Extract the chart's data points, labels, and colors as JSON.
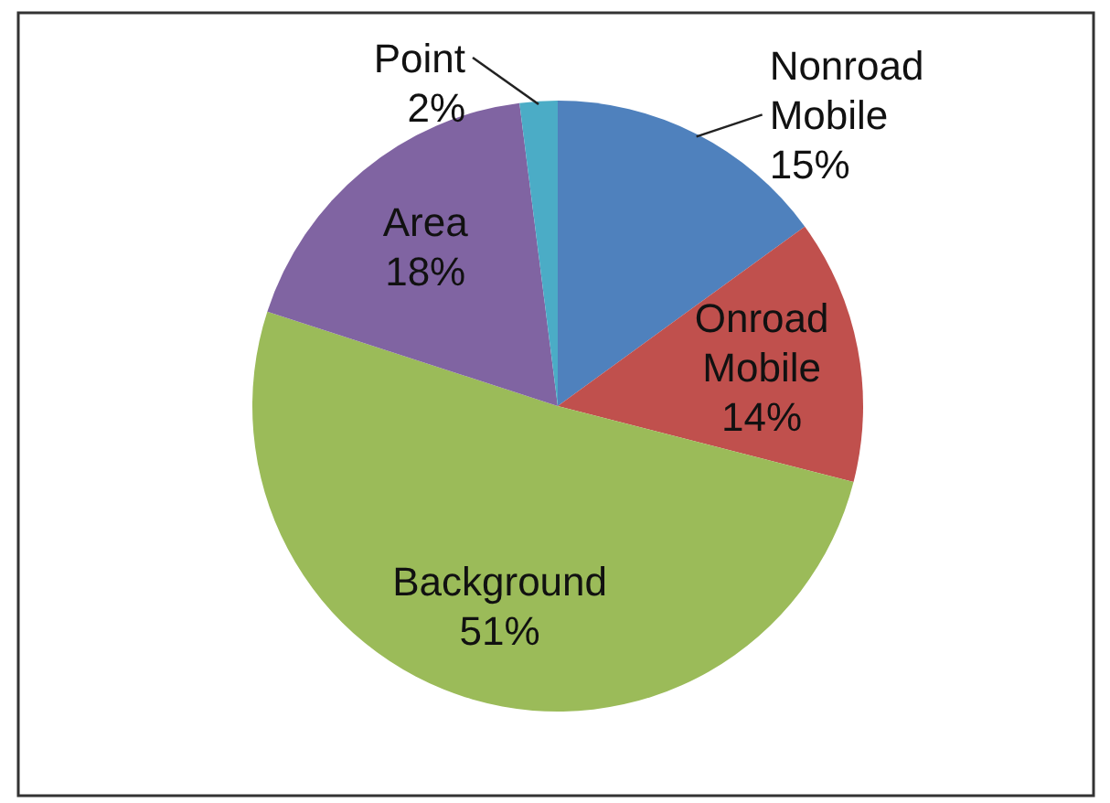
{
  "chart_data": {
    "type": "pie",
    "categories": [
      "Nonroad Mobile",
      "Onroad Mobile",
      "Background",
      "Area",
      "Point"
    ],
    "values": [
      15,
      14,
      51,
      18,
      2
    ],
    "colors": [
      "#4f81bd",
      "#c0504d",
      "#9bbb59",
      "#8064a2",
      "#4bacc6"
    ],
    "value_labels": [
      "15%",
      "14%",
      "51%",
      "18%",
      "2%"
    ]
  }
}
